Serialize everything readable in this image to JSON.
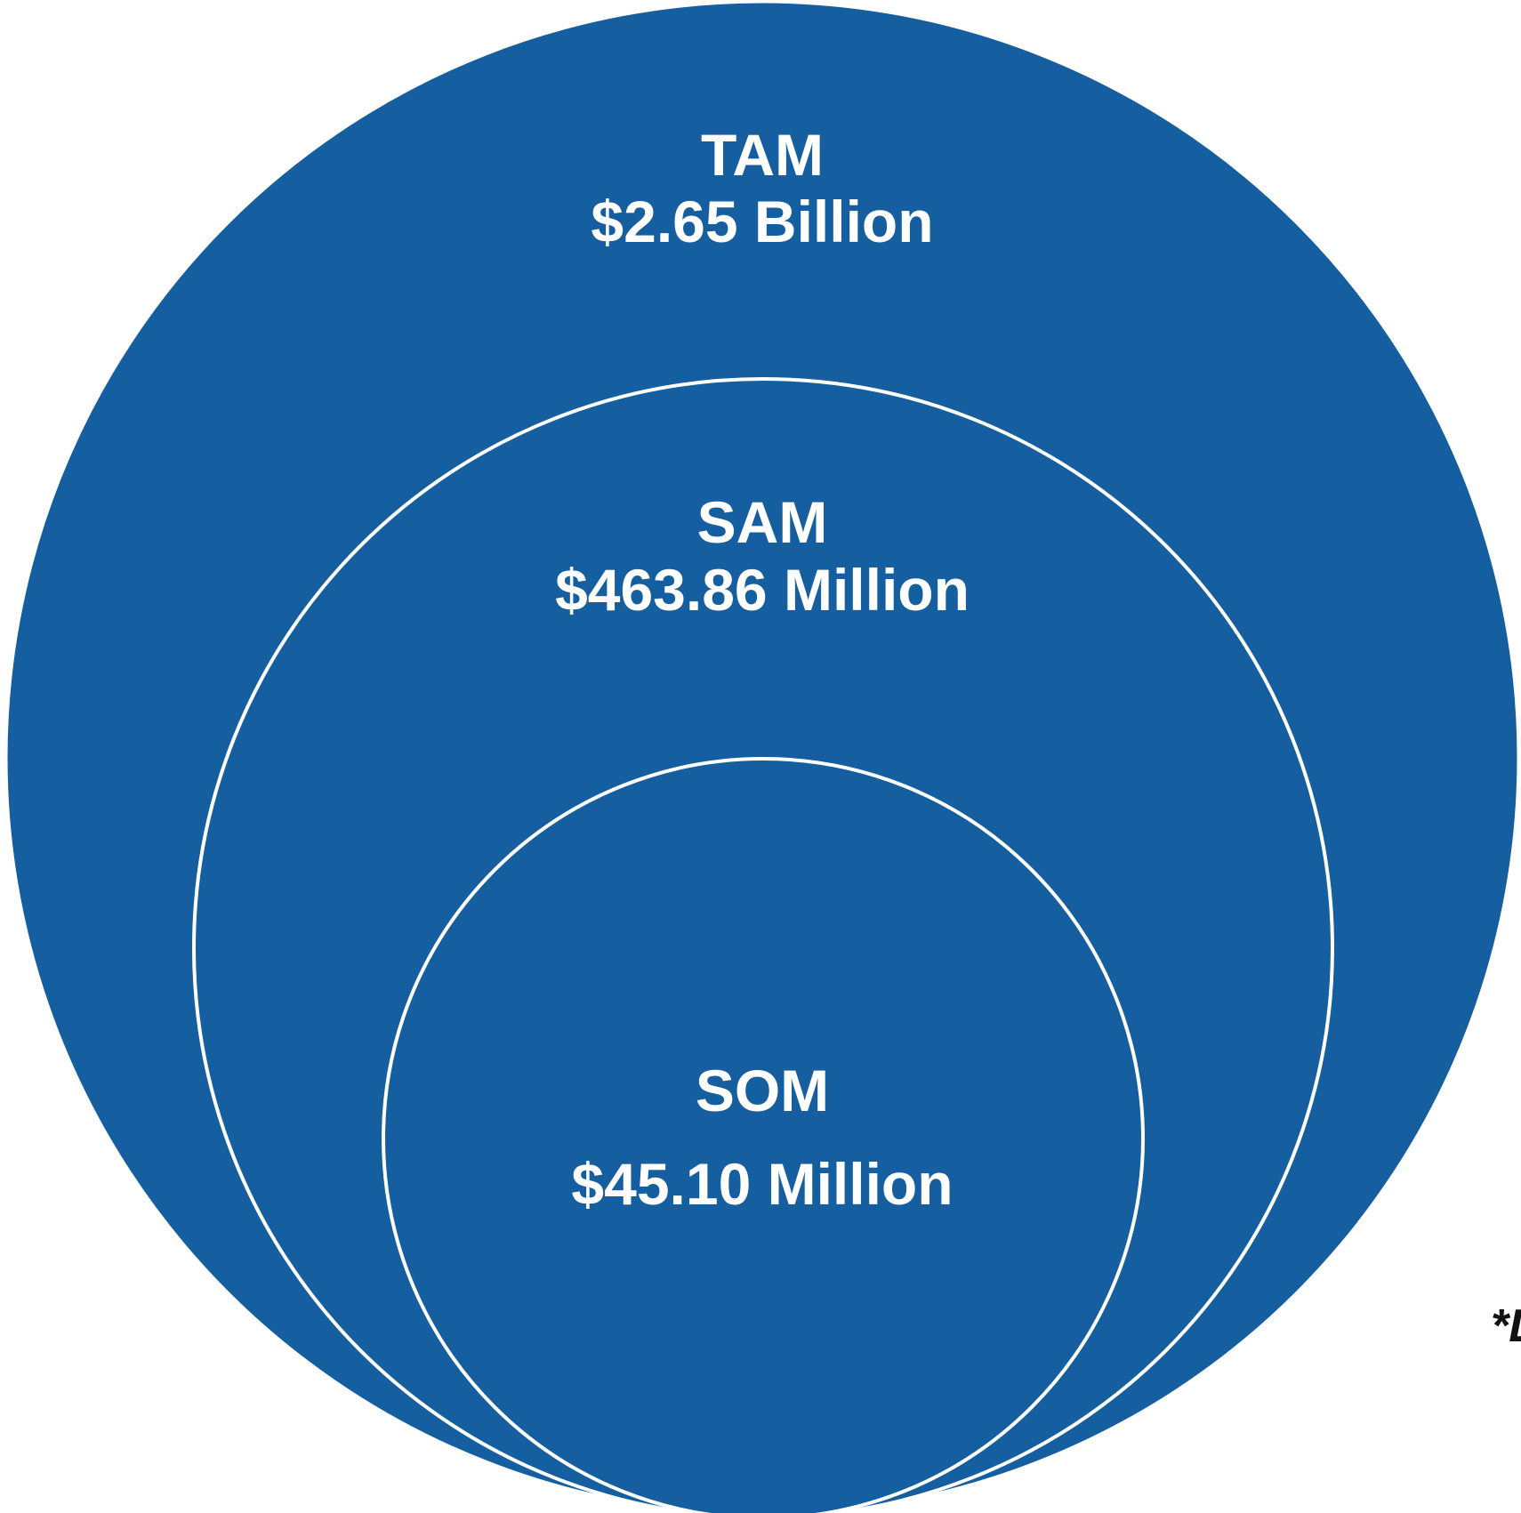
{
  "colors": {
    "fill": "#155EA0",
    "outline": "#FFFFFF",
    "label_text": "#FFFFFF",
    "footnote_text": "#111111"
  },
  "tam": {
    "name": "TAM",
    "value": "$2.65 Billion"
  },
  "sam": {
    "name": "SAM",
    "value": "$463.86 Million"
  },
  "som": {
    "name": "SOM",
    "value": "$45.10 Million"
  },
  "footnote": "*L"
}
